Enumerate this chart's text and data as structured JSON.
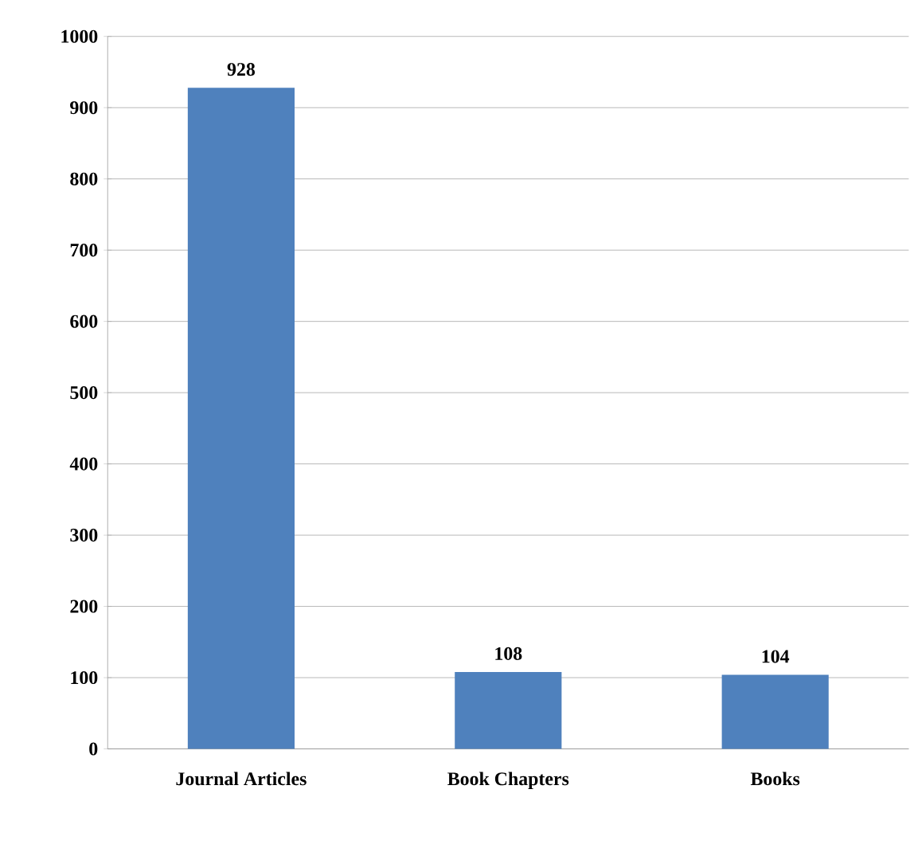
{
  "chart_data": {
    "type": "bar",
    "categories": [
      "Journal Articles",
      "Book Chapters",
      "Books"
    ],
    "values": [
      928,
      108,
      104
    ],
    "color": "#4f81bd",
    "ylim": [
      0,
      1000
    ],
    "yticks": [
      0,
      100,
      200,
      300,
      400,
      500,
      600,
      700,
      800,
      900,
      1000
    ],
    "grid": "y",
    "data_labels": true
  }
}
